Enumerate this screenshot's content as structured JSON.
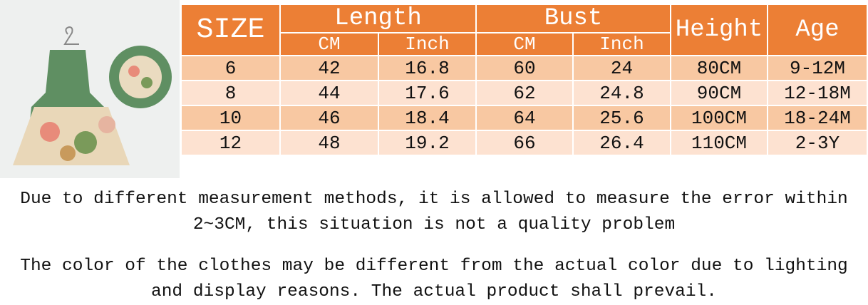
{
  "header": {
    "size": "SIZE",
    "length": "Length",
    "bust": "Bust",
    "height": "Height",
    "age": "Age",
    "units": [
      "CM",
      "Inch",
      "CM",
      "Inch"
    ]
  },
  "table": {
    "rows": [
      [
        "6",
        "42",
        "16.8",
        "60",
        "24",
        "80CM",
        "9-12M"
      ],
      [
        "8",
        "44",
        "17.6",
        "62",
        "24.8",
        "90CM",
        "12-18M"
      ],
      [
        "10",
        "46",
        "18.4",
        "64",
        "25.6",
        "100CM",
        "18-24M"
      ],
      [
        "12",
        "48",
        "19.2",
        "66",
        "26.4",
        "110CM",
        "2-3Y"
      ]
    ]
  },
  "notes": [
    "Due to different measurement methods, it is allowed to measure the error within 2~3CM, this situation is not a quality problem",
    "The color of the clothes may be different from the actual color due to lighting and display reasons. The actual product shall prevail."
  ]
}
